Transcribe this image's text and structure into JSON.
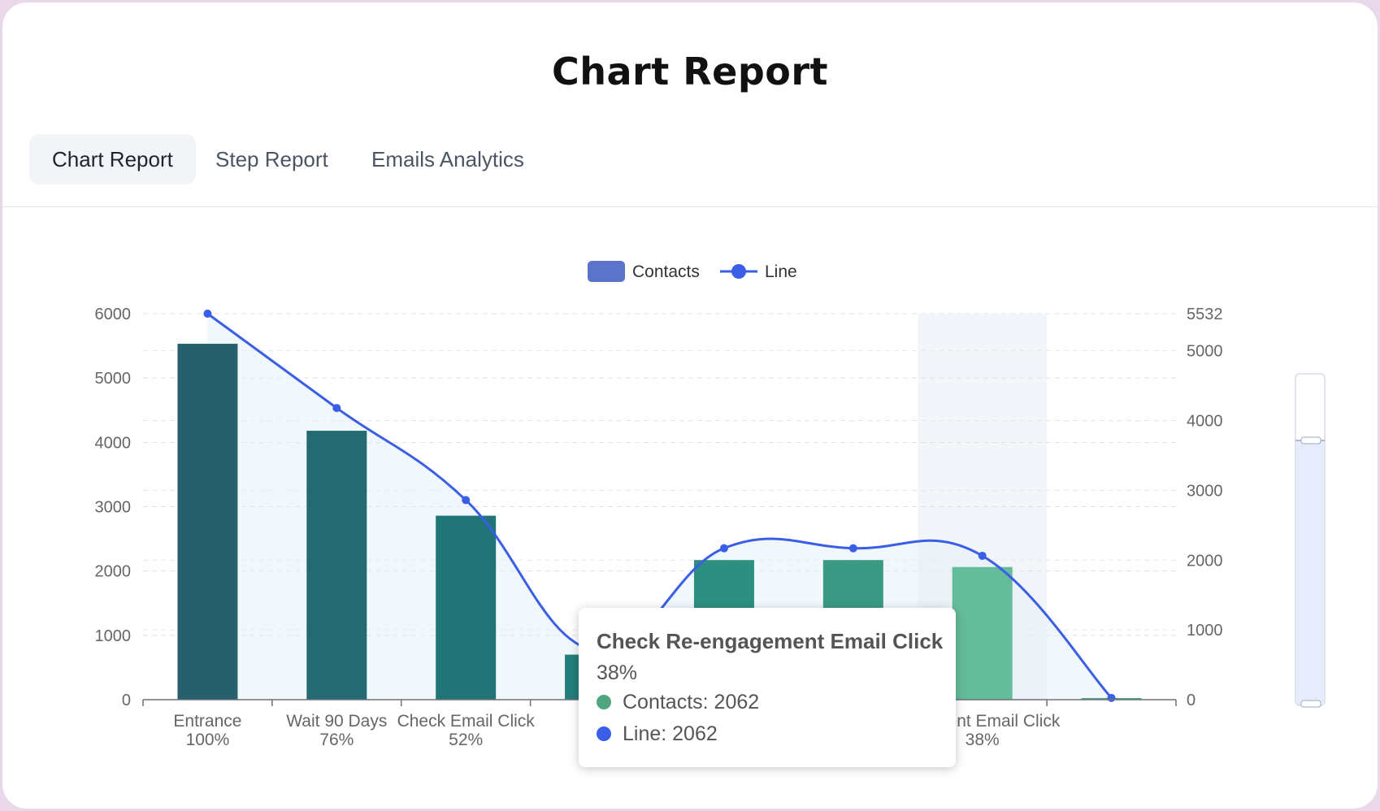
{
  "page": {
    "title": "Chart Report"
  },
  "tabs": [
    {
      "label": "Chart Report",
      "active": true
    },
    {
      "label": "Step Report",
      "active": false
    },
    {
      "label": "Emails Analytics",
      "active": false
    }
  ],
  "chart_data": {
    "type": "bar",
    "categories": [
      "Entrance",
      "Wait 90 Days",
      "Check Email Click",
      "",
      "",
      "",
      "Check Re-engagement Email Click",
      ""
    ],
    "category_labels_visible": [
      "Entrance",
      "Wait 90 Days",
      "Check Email Click",
      "",
      "",
      "",
      "agement Email Click",
      ""
    ],
    "percent_labels": [
      "100%",
      "76%",
      "52%",
      "",
      "",
      "",
      "38%",
      ""
    ],
    "series": [
      {
        "name": "Contacts",
        "type": "bar",
        "values": [
          5532,
          4180,
          2860,
          700,
          2170,
          2170,
          2062,
          25
        ]
      },
      {
        "name": "Line",
        "type": "line",
        "values": [
          5532,
          4180,
          2860,
          700,
          2170,
          2170,
          2062,
          25
        ]
      }
    ],
    "y_left": {
      "ticks": [
        0,
        1000,
        2000,
        3000,
        4000,
        5000,
        6000
      ],
      "ylim": [
        0,
        6000
      ]
    },
    "y_right": {
      "ticks": [
        0,
        1000,
        2000,
        3000,
        4000,
        5000,
        5532
      ],
      "ylim": [
        0,
        5532
      ]
    },
    "grid": true,
    "legend_position": "top-center",
    "highlighted_category_index": 6,
    "bar_colors": [
      "#27606c",
      "#246a73",
      "#227577",
      "#237e7a",
      "#2d8f80",
      "#3a9a84",
      "#64bc9b",
      "#4ea57e"
    ],
    "line_color": "#3b5ee6",
    "contacts_legend_color": "#5b73c8"
  },
  "tooltip": {
    "title": "Check Re-engagement Email Click",
    "subtitle": "38%",
    "rows": [
      {
        "label": "Contacts: 2062",
        "color": "#4ea57e"
      },
      {
        "label": "Line: 2062",
        "color": "#3b5ee6"
      }
    ]
  }
}
